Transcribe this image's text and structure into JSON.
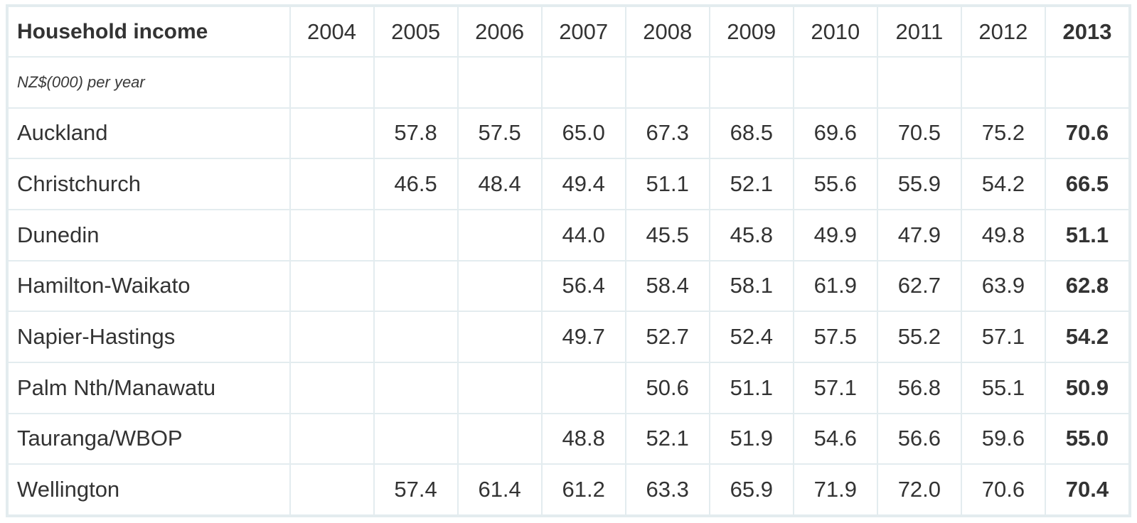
{
  "chart_data": {
    "type": "table",
    "row_header": "Household income",
    "unit_label": "NZ$(000) per year",
    "columns": [
      "2004",
      "2005",
      "2006",
      "2007",
      "2008",
      "2009",
      "2010",
      "2011",
      "2012",
      "2013"
    ],
    "highlight_column": "2013",
    "rows": [
      {
        "label": "Auckland",
        "values": [
          "",
          "57.8",
          "57.5",
          "65.0",
          "67.3",
          "68.5",
          "69.6",
          "70.5",
          "75.2",
          "70.6"
        ]
      },
      {
        "label": "Christchurch",
        "values": [
          "",
          "46.5",
          "48.4",
          "49.4",
          "51.1",
          "52.1",
          "55.6",
          "55.9",
          "54.2",
          "66.5"
        ]
      },
      {
        "label": "Dunedin",
        "values": [
          "",
          "",
          "",
          "44.0",
          "45.5",
          "45.8",
          "49.9",
          "47.9",
          "49.8",
          "51.1"
        ]
      },
      {
        "label": "Hamilton-Waikato",
        "values": [
          "",
          "",
          "",
          "56.4",
          "58.4",
          "58.1",
          "61.9",
          "62.7",
          "63.9",
          "62.8"
        ]
      },
      {
        "label": "Napier-Hastings",
        "values": [
          "",
          "",
          "",
          "49.7",
          "52.7",
          "52.4",
          "57.5",
          "55.2",
          "57.1",
          "54.2"
        ]
      },
      {
        "label": "Palm Nth/Manawatu",
        "values": [
          "",
          "",
          "",
          "",
          "50.6",
          "51.1",
          "57.1",
          "56.8",
          "55.1",
          "50.9"
        ]
      },
      {
        "label": "Tauranga/WBOP",
        "values": [
          "",
          "",
          "",
          "48.8",
          "52.1",
          "51.9",
          "54.6",
          "56.6",
          "59.6",
          "55.0"
        ]
      },
      {
        "label": "Wellington",
        "values": [
          "",
          "57.4",
          "61.4",
          "61.2",
          "63.3",
          "65.9",
          "71.9",
          "72.0",
          "70.6",
          "70.4"
        ]
      }
    ]
  }
}
